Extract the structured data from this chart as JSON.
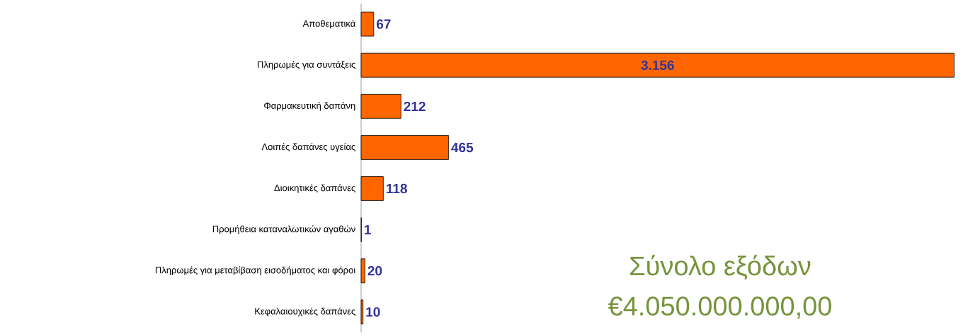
{
  "chart_data": {
    "type": "bar",
    "orientation": "horizontal",
    "categories": [
      "Αποθεματικά",
      "Πληρωμές για συντάξεις",
      "Φαρμακευτική δαπάνη",
      "Λοιπές δαπάνες υγείας",
      "Διοικητικές δαπάνες",
      "Προμήθεια καταναλωτικών αγαθών",
      "Πληρωμές για μεταβίβαση  εισοδήματος και φόροι",
      "Κεφαλαιουχικές δαπάνες"
    ],
    "values": [
      67,
      3156,
      212,
      465,
      118,
      1,
      20,
      10
    ],
    "value_labels": [
      "67",
      "3.156",
      "212",
      "465",
      "118",
      "1",
      "20",
      "10"
    ],
    "color": "#ff6600",
    "annotations": [
      "Σύνολο εξόδων",
      "€4.050.000.000,00"
    ]
  }
}
